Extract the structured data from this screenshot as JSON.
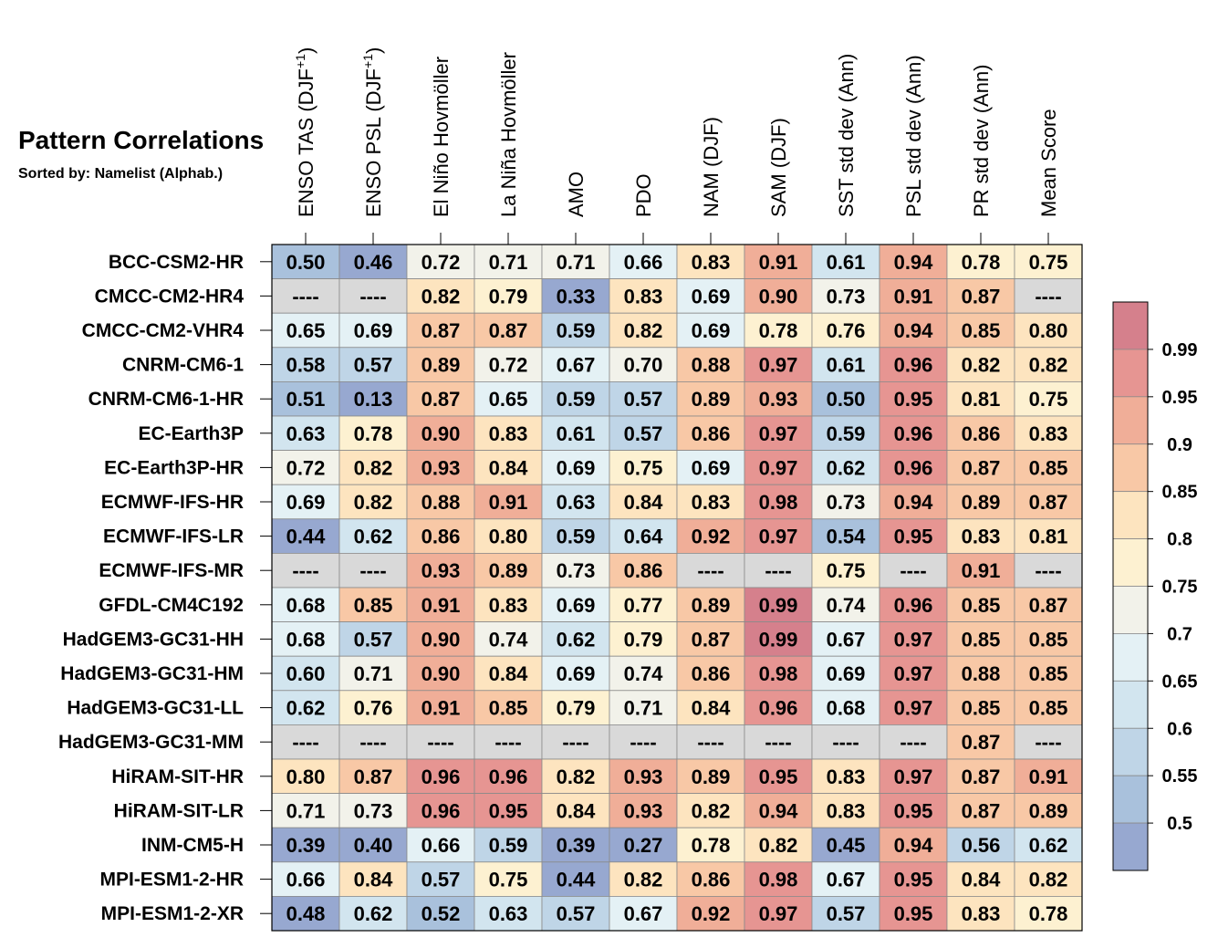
{
  "title": "Pattern Correlations",
  "subtitle": "Sorted by: Namelist (Alphab.)",
  "chart_data": {
    "type": "heatmap",
    "columns": [
      {
        "text": "ENSO TAS (DJF",
        "sup": "+1",
        "close": ")"
      },
      {
        "text": "ENSO PSL (DJF",
        "sup": "+1",
        "close": ")"
      },
      {
        "text": "El Niño Hovmöller"
      },
      {
        "text": "La Niña Hovmöller"
      },
      {
        "text": "AMO"
      },
      {
        "text": "PDO"
      },
      {
        "text": "NAM (DJF)"
      },
      {
        "text": "SAM (DJF)"
      },
      {
        "text": "SST std dev (Ann)"
      },
      {
        "text": "PSL std dev (Ann)"
      },
      {
        "text": "PR std dev (Ann)"
      },
      {
        "text": "Mean Score"
      }
    ],
    "rows": [
      {
        "name": "BCC-CSM2-HR",
        "values": [
          0.5,
          0.46,
          0.72,
          0.71,
          0.71,
          0.66,
          0.83,
          0.91,
          0.61,
          0.94,
          0.78,
          0.75
        ]
      },
      {
        "name": "CMCC-CM2-HR4",
        "values": [
          null,
          null,
          0.82,
          0.79,
          0.33,
          0.83,
          0.69,
          0.9,
          0.73,
          0.91,
          0.87,
          null
        ]
      },
      {
        "name": "CMCC-CM2-VHR4",
        "values": [
          0.65,
          0.69,
          0.87,
          0.87,
          0.59,
          0.82,
          0.69,
          0.78,
          0.76,
          0.94,
          0.85,
          0.8
        ]
      },
      {
        "name": "CNRM-CM6-1",
        "values": [
          0.58,
          0.57,
          0.89,
          0.72,
          0.67,
          0.7,
          0.88,
          0.97,
          0.61,
          0.96,
          0.82,
          0.82
        ]
      },
      {
        "name": "CNRM-CM6-1-HR",
        "values": [
          0.51,
          0.13,
          0.87,
          0.65,
          0.59,
          0.57,
          0.89,
          0.93,
          0.5,
          0.95,
          0.81,
          0.75
        ]
      },
      {
        "name": "EC-Earth3P",
        "values": [
          0.63,
          0.78,
          0.9,
          0.83,
          0.61,
          0.57,
          0.86,
          0.97,
          0.59,
          0.96,
          0.86,
          0.83
        ]
      },
      {
        "name": "EC-Earth3P-HR",
        "values": [
          0.72,
          0.82,
          0.93,
          0.84,
          0.69,
          0.75,
          0.69,
          0.97,
          0.62,
          0.96,
          0.87,
          0.85
        ]
      },
      {
        "name": "ECMWF-IFS-HR",
        "values": [
          0.69,
          0.82,
          0.88,
          0.91,
          0.63,
          0.84,
          0.83,
          0.98,
          0.73,
          0.94,
          0.89,
          0.87
        ]
      },
      {
        "name": "ECMWF-IFS-LR",
        "values": [
          0.44,
          0.62,
          0.86,
          0.8,
          0.59,
          0.64,
          0.92,
          0.97,
          0.54,
          0.95,
          0.83,
          0.81
        ]
      },
      {
        "name": "ECMWF-IFS-MR",
        "values": [
          null,
          null,
          0.93,
          0.89,
          0.73,
          0.86,
          null,
          null,
          0.75,
          null,
          0.91,
          null
        ]
      },
      {
        "name": "GFDL-CM4C192",
        "values": [
          0.68,
          0.85,
          0.91,
          0.83,
          0.69,
          0.77,
          0.89,
          0.99,
          0.74,
          0.96,
          0.85,
          0.87
        ]
      },
      {
        "name": "HadGEM3-GC31-HH",
        "values": [
          0.68,
          0.57,
          0.9,
          0.74,
          0.62,
          0.79,
          0.87,
          0.99,
          0.67,
          0.97,
          0.85,
          0.85
        ]
      },
      {
        "name": "HadGEM3-GC31-HM",
        "values": [
          0.6,
          0.71,
          0.9,
          0.84,
          0.69,
          0.74,
          0.86,
          0.98,
          0.69,
          0.97,
          0.88,
          0.85
        ]
      },
      {
        "name": "HadGEM3-GC31-LL",
        "values": [
          0.62,
          0.76,
          0.91,
          0.85,
          0.79,
          0.71,
          0.84,
          0.96,
          0.68,
          0.97,
          0.85,
          0.85
        ]
      },
      {
        "name": "HadGEM3-GC31-MM",
        "values": [
          null,
          null,
          null,
          null,
          null,
          null,
          null,
          null,
          null,
          null,
          0.87,
          null
        ]
      },
      {
        "name": "HiRAM-SIT-HR",
        "values": [
          0.8,
          0.87,
          0.96,
          0.96,
          0.82,
          0.93,
          0.89,
          0.95,
          0.83,
          0.97,
          0.87,
          0.91
        ]
      },
      {
        "name": "HiRAM-SIT-LR",
        "values": [
          0.71,
          0.73,
          0.96,
          0.95,
          0.84,
          0.93,
          0.82,
          0.94,
          0.83,
          0.95,
          0.87,
          0.89
        ]
      },
      {
        "name": "INM-CM5-H",
        "values": [
          0.39,
          0.4,
          0.66,
          0.59,
          0.39,
          0.27,
          0.78,
          0.82,
          0.45,
          0.94,
          0.56,
          0.62
        ]
      },
      {
        "name": "MPI-ESM1-2-HR",
        "values": [
          0.66,
          0.84,
          0.57,
          0.75,
          0.44,
          0.82,
          0.86,
          0.98,
          0.67,
          0.95,
          0.84,
          0.82
        ]
      },
      {
        "name": "MPI-ESM1-2-XR",
        "values": [
          0.48,
          0.62,
          0.52,
          0.63,
          0.57,
          0.67,
          0.92,
          0.97,
          0.57,
          0.95,
          0.83,
          0.78
        ]
      }
    ],
    "missing_text": "----",
    "missing_color": "#d9d9d9",
    "colorbar": {
      "labels": [
        "0.99",
        "0.95",
        "0.9",
        "0.85",
        "0.8",
        "0.75",
        "0.7",
        "0.65",
        "0.6",
        "0.55",
        "0.5"
      ],
      "thresholds": [
        0.5,
        0.55,
        0.6,
        0.65,
        0.7,
        0.75,
        0.8,
        0.85,
        0.9,
        0.95,
        0.99
      ],
      "colors": [
        "#97a8d0",
        "#a9c1dc",
        "#bfd5e7",
        "#d2e5ef",
        "#e4f1f5",
        "#f2f2ea",
        "#fdf1d1",
        "#fde4bf",
        "#f8c8a6",
        "#f0ae98",
        "#e69592",
        "#d5808c"
      ]
    }
  }
}
